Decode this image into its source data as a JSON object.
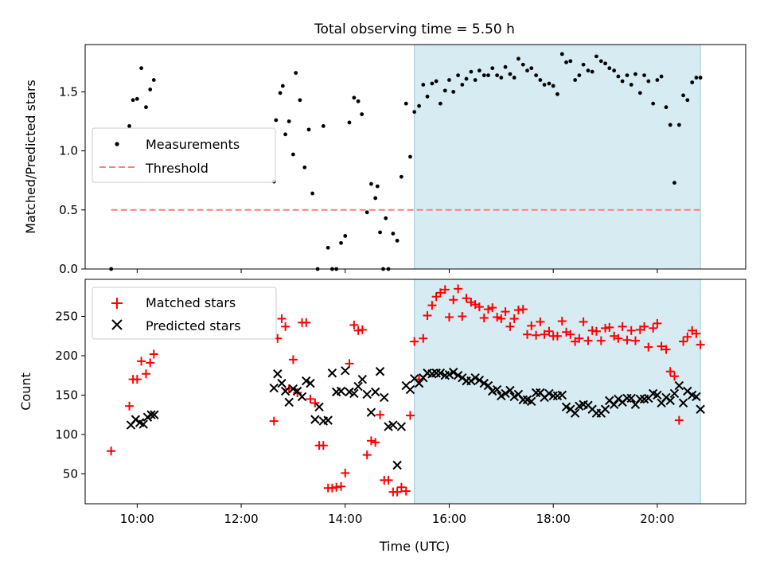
{
  "figure_title": "Total observing time = 5.50 h",
  "colors": {
    "measurement": "#000000",
    "threshold": "#ff7f7f",
    "matched": "#ff0000",
    "predicted": "#000000",
    "shade": "#add8e6"
  },
  "chart_data": [
    {
      "type": "scatter",
      "title": "Total observing time = 5.50 h",
      "xlabel": "",
      "ylabel": "Matched/Predicted stars",
      "xlim": [
        9.0,
        21.7
      ],
      "ylim": [
        0.0,
        1.9
      ],
      "yticks": [
        0.0,
        0.5,
        1.0,
        1.5
      ],
      "ytick_labels": [
        "0.0",
        "0.5",
        "1.0",
        "1.5"
      ],
      "shaded_span": [
        15.33,
        20.83
      ],
      "legend_location": "center-left",
      "legend": [
        "Measurements",
        "Threshold"
      ],
      "threshold": {
        "y": 0.5,
        "x_range": [
          9.5,
          20.83
        ]
      },
      "series": [
        {
          "name": "Measurements",
          "marker": "dot",
          "x": [
            9.5,
            9.85,
            9.92,
            10.0,
            10.08,
            10.17,
            10.25,
            10.32,
            12.63,
            12.67,
            12.75,
            12.8,
            12.85,
            12.92,
            13.0,
            13.05,
            13.13,
            13.22,
            13.3,
            13.37,
            13.47,
            13.58,
            13.67,
            13.75,
            13.83,
            13.92,
            14.0,
            14.08,
            14.17,
            14.25,
            14.32,
            14.42,
            14.5,
            14.58,
            14.62,
            14.67,
            14.73,
            14.78,
            14.83,
            14.92,
            15.0,
            15.08,
            15.17,
            15.25,
            15.33,
            15.42,
            15.5,
            15.58,
            15.67,
            15.75,
            15.83,
            15.92,
            16.0,
            16.08,
            16.17,
            16.25,
            16.33,
            16.42,
            16.5,
            16.58,
            16.67,
            16.75,
            16.83,
            16.92,
            17.0,
            17.08,
            17.17,
            17.25,
            17.33,
            17.42,
            17.5,
            17.58,
            17.67,
            17.75,
            17.83,
            17.92,
            18.0,
            18.08,
            18.17,
            18.25,
            18.33,
            18.42,
            18.5,
            18.58,
            18.67,
            18.75,
            18.83,
            18.92,
            19.0,
            19.08,
            19.17,
            19.25,
            19.33,
            19.42,
            19.5,
            19.58,
            19.67,
            19.75,
            19.83,
            19.92,
            20.0,
            20.08,
            20.17,
            20.25,
            20.33,
            20.42,
            20.5,
            20.58,
            20.67,
            20.75,
            20.83
          ],
          "y": [
            0.0,
            1.21,
            1.43,
            1.44,
            1.7,
            1.37,
            1.52,
            1.6,
            0.74,
            1.26,
            1.49,
            1.55,
            1.14,
            1.25,
            0.97,
            1.66,
            1.43,
            0.86,
            1.18,
            0.64,
            0.0,
            1.21,
            0.18,
            0.0,
            0.0,
            0.22,
            0.28,
            1.24,
            1.45,
            1.42,
            1.31,
            0.48,
            0.72,
            0.6,
            0.7,
            0.31,
            0.0,
            0.43,
            0.0,
            0.3,
            0.24,
            0.78,
            1.4,
            0.95,
            1.33,
            1.38,
            1.56,
            1.46,
            1.57,
            1.59,
            1.4,
            1.51,
            1.6,
            1.5,
            1.64,
            1.56,
            1.61,
            1.67,
            1.6,
            1.68,
            1.64,
            1.64,
            1.7,
            1.64,
            1.62,
            1.71,
            1.65,
            1.62,
            1.78,
            1.73,
            1.68,
            1.7,
            1.64,
            1.6,
            1.56,
            1.57,
            1.55,
            1.48,
            1.82,
            1.75,
            1.76,
            1.6,
            1.64,
            1.73,
            1.68,
            1.67,
            1.8,
            1.76,
            1.74,
            1.7,
            1.68,
            1.63,
            1.59,
            1.64,
            1.56,
            1.65,
            1.49,
            1.64,
            1.59,
            1.4,
            1.6,
            1.63,
            1.37,
            1.22,
            0.73,
            1.22,
            1.47,
            1.43,
            1.58,
            1.62,
            1.62
          ]
        }
      ]
    },
    {
      "type": "scatter",
      "title": "",
      "xlabel": "Time (UTC)",
      "ylabel": "Count",
      "xlim": [
        9.0,
        21.7
      ],
      "ylim": [
        12,
        297
      ],
      "xticks": [
        10,
        12,
        14,
        16,
        18,
        20
      ],
      "xtick_labels": [
        "10:00",
        "12:00",
        "14:00",
        "16:00",
        "18:00",
        "20:00"
      ],
      "yticks": [
        50,
        100,
        150,
        200,
        250
      ],
      "ytick_labels": [
        "50",
        "100",
        "150",
        "200",
        "250"
      ],
      "shaded_span": [
        15.33,
        20.83
      ],
      "legend_location": "upper-left",
      "legend": [
        "Matched stars",
        "Predicted stars"
      ],
      "series": [
        {
          "name": "Matched stars",
          "marker": "plus",
          "x": [
            9.5,
            9.85,
            9.92,
            10.0,
            10.08,
            10.17,
            10.25,
            10.32,
            12.63,
            12.7,
            12.78,
            12.85,
            12.92,
            13.0,
            13.08,
            13.17,
            13.25,
            13.33,
            13.42,
            13.5,
            13.58,
            13.67,
            13.75,
            13.83,
            13.92,
            14.0,
            14.08,
            14.17,
            14.25,
            14.33,
            14.42,
            14.5,
            14.58,
            14.67,
            14.75,
            14.83,
            14.92,
            15.0,
            15.08,
            15.17,
            15.25,
            15.33,
            15.42,
            15.5,
            15.58,
            15.67,
            15.75,
            15.83,
            15.92,
            16.0,
            16.08,
            16.17,
            16.25,
            16.33,
            16.42,
            16.5,
            16.58,
            16.67,
            16.75,
            16.83,
            16.92,
            17.0,
            17.08,
            17.17,
            17.25,
            17.33,
            17.42,
            17.5,
            17.58,
            17.67,
            17.75,
            17.83,
            17.92,
            18.0,
            18.08,
            18.17,
            18.25,
            18.33,
            18.42,
            18.5,
            18.58,
            18.67,
            18.75,
            18.83,
            18.92,
            19.0,
            19.08,
            19.17,
            19.25,
            19.33,
            19.42,
            19.5,
            19.58,
            19.67,
            19.75,
            19.83,
            19.92,
            20.0,
            20.08,
            20.17,
            20.25,
            20.33,
            20.42,
            20.5,
            20.58,
            20.67,
            20.75,
            20.83
          ],
          "y": [
            79,
            136,
            170,
            170,
            193,
            177,
            191,
            202,
            117,
            222,
            247,
            237,
            158,
            195,
            153,
            242,
            242,
            145,
            140,
            86,
            86,
            32,
            32,
            33,
            34,
            51,
            190,
            239,
            232,
            233,
            74,
            92,
            90,
            125,
            42,
            42,
            27,
            27,
            33,
            28,
            124,
            218,
            170,
            222,
            251,
            264,
            275,
            280,
            284,
            249,
            271,
            285,
            250,
            273,
            268,
            265,
            262,
            248,
            259,
            261,
            249,
            247,
            256,
            237,
            247,
            258,
            259,
            227,
            238,
            226,
            243,
            227,
            231,
            225,
            225,
            244,
            230,
            227,
            218,
            222,
            243,
            219,
            232,
            231,
            219,
            235,
            236,
            225,
            222,
            237,
            220,
            232,
            219,
            233,
            237,
            211,
            235,
            241,
            212,
            208,
            180,
            174,
            118,
            218,
            224,
            232,
            228,
            214
          ],
          "note_y": ""
        },
        {
          "name": "Predicted stars",
          "marker": "x",
          "x": [
            9.88,
            9.97,
            10.05,
            10.12,
            10.2,
            10.27,
            10.33,
            12.63,
            12.7,
            12.78,
            12.85,
            12.92,
            13.0,
            13.08,
            13.17,
            13.25,
            13.33,
            13.42,
            13.5,
            13.58,
            13.67,
            13.75,
            13.83,
            13.92,
            14.0,
            14.08,
            14.17,
            14.25,
            14.33,
            14.42,
            14.5,
            14.58,
            14.67,
            14.75,
            14.83,
            14.92,
            15.0,
            15.08,
            15.17,
            15.25,
            15.33,
            15.42,
            15.5,
            15.58,
            15.67,
            15.75,
            15.83,
            15.92,
            16.0,
            16.08,
            16.17,
            16.25,
            16.33,
            16.42,
            16.5,
            16.58,
            16.67,
            16.75,
            16.83,
            16.92,
            17.0,
            17.08,
            17.17,
            17.25,
            17.33,
            17.42,
            17.5,
            17.58,
            17.67,
            17.75,
            17.83,
            17.92,
            18.0,
            18.08,
            18.17,
            18.25,
            18.33,
            18.42,
            18.5,
            18.58,
            18.67,
            18.75,
            18.83,
            18.92,
            19.0,
            19.08,
            19.17,
            19.25,
            19.33,
            19.42,
            19.5,
            19.58,
            19.67,
            19.75,
            19.83,
            19.92,
            20.0,
            20.08,
            20.17,
            20.25,
            20.33,
            20.42,
            20.5,
            20.58,
            20.67,
            20.75,
            20.83
          ],
          "y": [
            112,
            119,
            115,
            113,
            122,
            125,
            125,
            159,
            177,
            165,
            155,
            141,
            158,
            155,
            148,
            168,
            165,
            119,
            135,
            117,
            118,
            178,
            154,
            155,
            181,
            154,
            152,
            161,
            170,
            151,
            128,
            154,
            180,
            147,
            110,
            112,
            61,
            110,
            162,
            157,
            171,
            165,
            172,
            178,
            177,
            178,
            178,
            175,
            176,
            179,
            175,
            172,
            168,
            168,
            172,
            169,
            165,
            162,
            155,
            157,
            149,
            152,
            156,
            148,
            151,
            144,
            144,
            142,
            153,
            153,
            147,
            152,
            149,
            149,
            150,
            135,
            132,
            127,
            136,
            138,
            137,
            132,
            127,
            127,
            132,
            143,
            138,
            145,
            141,
            146,
            146,
            138,
            145,
            145,
            146,
            152,
            150,
            140,
            147,
            143,
            152,
            162,
            140,
            155,
            150,
            148,
            132
          ]
        }
      ]
    }
  ]
}
